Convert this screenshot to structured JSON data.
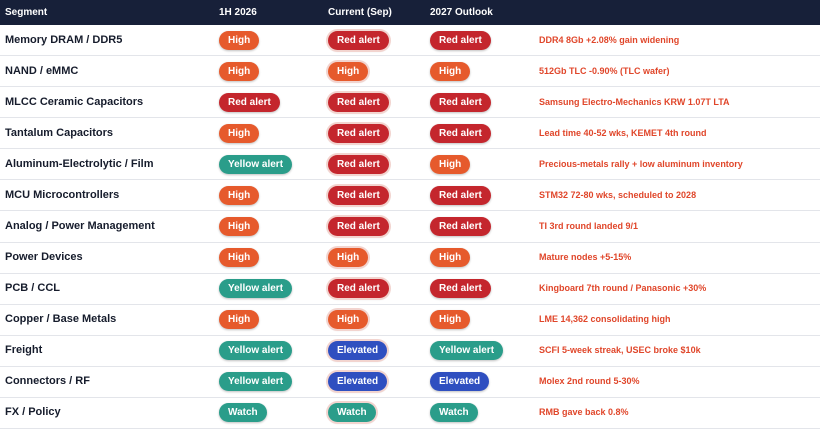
{
  "table": {
    "headers": [
      "Segment",
      "1H 2026",
      "Current (Sep)",
      "2027 Outlook"
    ],
    "rows": [
      {
        "segment": "Memory DRAM / DDR5",
        "cells": [
          {
            "label": "High",
            "color": "#e65a2c"
          },
          {
            "label": "Red alert",
            "color": "#c4262d"
          },
          {
            "label": "Red alert",
            "color": "#c4262d"
          }
        ],
        "note": "DDR4 8Gb +2.08% gain widening"
      },
      {
        "segment": "NAND / eMMC",
        "cells": [
          {
            "label": "High",
            "color": "#e65a2c"
          },
          {
            "label": "High",
            "color": "#e65a2c"
          },
          {
            "label": "High",
            "color": "#e65a2c"
          }
        ],
        "note": "512Gb TLC -0.90% (TLC wafer)"
      },
      {
        "segment": "MLCC Ceramic Capacitors",
        "cells": [
          {
            "label": "Red alert",
            "color": "#c4262d"
          },
          {
            "label": "Red alert",
            "color": "#c4262d"
          },
          {
            "label": "Red alert",
            "color": "#c4262d"
          }
        ],
        "note": "Samsung Electro-Mechanics KRW 1.07T LTA"
      },
      {
        "segment": "Tantalum Capacitors",
        "cells": [
          {
            "label": "High",
            "color": "#e65a2c"
          },
          {
            "label": "Red alert",
            "color": "#c4262d"
          },
          {
            "label": "Red alert",
            "color": "#c4262d"
          }
        ],
        "note": "Lead time 40-52 wks, KEMET 4th round"
      },
      {
        "segment": "Aluminum-Electrolytic / Film",
        "cells": [
          {
            "label": "Yellow alert",
            "color": "#2a9d8a"
          },
          {
            "label": "Red alert",
            "color": "#c4262d"
          },
          {
            "label": "High",
            "color": "#e65a2c"
          }
        ],
        "note": "Precious-metals rally + low aluminum inventory"
      },
      {
        "segment": "MCU Microcontrollers",
        "cells": [
          {
            "label": "High",
            "color": "#e65a2c"
          },
          {
            "label": "Red alert",
            "color": "#c4262d"
          },
          {
            "label": "Red alert",
            "color": "#c4262d"
          }
        ],
        "note": "STM32 72-80 wks, scheduled to 2028"
      },
      {
        "segment": "Analog / Power Management",
        "cells": [
          {
            "label": "High",
            "color": "#e65a2c"
          },
          {
            "label": "Red alert",
            "color": "#c4262d"
          },
          {
            "label": "Red alert",
            "color": "#c4262d"
          }
        ],
        "note": "TI 3rd round landed 9/1"
      },
      {
        "segment": "Power Devices",
        "cells": [
          {
            "label": "High",
            "color": "#e65a2c"
          },
          {
            "label": "High",
            "color": "#e65a2c"
          },
          {
            "label": "High",
            "color": "#e65a2c"
          }
        ],
        "note": "Mature nodes +5-15%"
      },
      {
        "segment": "PCB / CCL",
        "cells": [
          {
            "label": "Yellow alert",
            "color": "#2a9d8a"
          },
          {
            "label": "Red alert",
            "color": "#c4262d"
          },
          {
            "label": "Red alert",
            "color": "#c4262d"
          }
        ],
        "note": "Kingboard 7th round / Panasonic +30%"
      },
      {
        "segment": "Copper / Base Metals",
        "cells": [
          {
            "label": "High",
            "color": "#e65a2c"
          },
          {
            "label": "High",
            "color": "#e65a2c"
          },
          {
            "label": "High",
            "color": "#e65a2c"
          }
        ],
        "note": "LME 14,362 consolidating high"
      },
      {
        "segment": "Freight",
        "cells": [
          {
            "label": "Yellow alert",
            "color": "#2a9d8a"
          },
          {
            "label": "Elevated",
            "color": "#2f4fc0"
          },
          {
            "label": "Yellow alert",
            "color": "#2a9d8a"
          }
        ],
        "note": "SCFI 5-week streak, USEC broke $10k"
      },
      {
        "segment": "Connectors / RF",
        "cells": [
          {
            "label": "Yellow alert",
            "color": "#2a9d8a"
          },
          {
            "label": "Elevated",
            "color": "#2f4fc0"
          },
          {
            "label": "Elevated",
            "color": "#2f4fc0"
          }
        ],
        "note": "Molex 2nd round 5-30%"
      },
      {
        "segment": "FX / Policy",
        "cells": [
          {
            "label": "Watch",
            "color": "#2a9d8a"
          },
          {
            "label": "Watch",
            "color": "#2a9d8a"
          },
          {
            "label": "Watch",
            "color": "#2a9d8a"
          }
        ],
        "note": "RMB gave back 0.8%"
      }
    ]
  }
}
